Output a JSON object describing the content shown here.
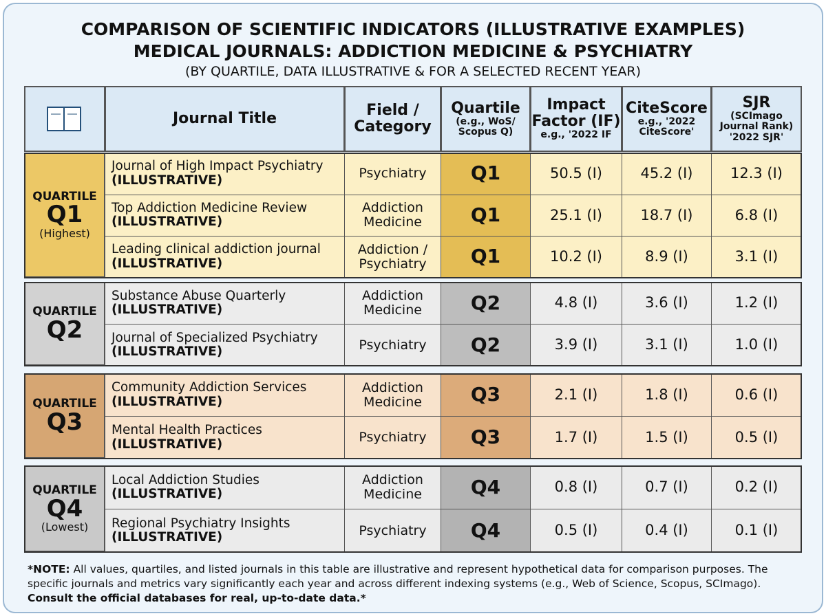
{
  "header": {
    "title_lines": [
      "COMPARISON OF SCIENTIFIC INDICATORS (ILLUSTRATIVE EXAMPLES)",
      "MEDICAL JOURNALS: ADDICTION MEDICINE & PSYCHIATRY",
      "(BY QUARTILE, DATA ILLUSTRATIVE & FOR A SELECTED RECENT YEAR)"
    ]
  },
  "table": {
    "columns": {
      "title": "Journal Title",
      "field": "Field / Category",
      "quartile": {
        "main": "Quartile",
        "sub": "(e.g., WoS/ Scopus Q)"
      },
      "impact_factor": {
        "main": "Impact Factor (IF)",
        "sub": "e.g., '2022 IF"
      },
      "citescore": {
        "main": "CiteScore",
        "sub": "e.g., '2022 CiteScore'"
      },
      "sjr": {
        "main": "SJR",
        "sub": "(SCImago Journal Rank) '2022 SJR'"
      }
    },
    "groups": [
      {
        "label": "QUARTILE",
        "quartile": "Q1",
        "note": "(Highest)",
        "rows": [
          {
            "title": "Journal of High Impact Psychiatry",
            "tag": "(ILLUSTRATIVE)",
            "field": "Psychiatry",
            "quartile": "Q1",
            "impact_factor": "50.5 (I)",
            "citescore": "45.2 (I)",
            "sjr": "12.3 (I)"
          },
          {
            "title": "Top Addiction Medicine Review",
            "tag": "(ILLUSTRATIVE)",
            "field": "Addiction Medicine",
            "quartile": "Q1",
            "impact_factor": "25.1 (I)",
            "citescore": "18.7 (I)",
            "sjr": "6.8 (I)"
          },
          {
            "title": "Leading clinical addiction journal",
            "tag": "(ILLUSTRATIVE)",
            "field": "Addiction / Psychiatry",
            "quartile": "Q1",
            "impact_factor": "10.2 (I)",
            "citescore": "8.9 (I)",
            "sjr": "3.1 (I)"
          }
        ]
      },
      {
        "label": "QUARTILE",
        "quartile": "Q2",
        "rows": [
          {
            "title": "Substance Abuse Quarterly",
            "tag": "(ILLUSTRATIVE)",
            "field": "Addiction Medicine",
            "quartile": "Q2",
            "impact_factor": "4.8 (I)",
            "citescore": "3.6 (I)",
            "sjr": "1.2 (I)"
          },
          {
            "title": "Journal of Specialized Psychiatry",
            "tag": "(ILLUSTRATIVE)",
            "field": "Psychiatry",
            "quartile": "Q2",
            "impact_factor": "3.9 (I)",
            "citescore": "3.1 (I)",
            "sjr": "1.0 (I)"
          }
        ]
      },
      {
        "label": "QUARTILE",
        "quartile": "Q3",
        "rows": [
          {
            "title": "Community Addiction Services",
            "tag": "(ILLUSTRATIVE)",
            "field": "Addiction Medicine",
            "quartile": "Q3",
            "impact_factor": "2.1 (I)",
            "citescore": "1.8 (I)",
            "sjr": "0.6 (I)"
          },
          {
            "title": "Mental Health Practices",
            "tag": "(ILLUSTRATIVE)",
            "field": "Psychiatry",
            "quartile": "Q3",
            "impact_factor": "1.7 (I)",
            "citescore": "1.5 (I)",
            "sjr": "0.5 (I)"
          }
        ]
      },
      {
        "label": "QUARTILE",
        "quartile": "Q4",
        "note": "(Lowest)",
        "rows": [
          {
            "title": "Local Addiction Studies",
            "tag": "(ILLUSTRATIVE)",
            "field": "Addiction Medicine",
            "quartile": "Q4",
            "impact_factor": "0.8 (I)",
            "citescore": "0.7 (I)",
            "sjr": "0.2 (I)"
          },
          {
            "title": "Regional Psychiatry Insights",
            "tag": "(ILLUSTRATIVE)",
            "field": "Psychiatry",
            "quartile": "Q4",
            "impact_factor": "0.5 (I)",
            "citescore": "0.4 (I)",
            "sjr": "0.1 (I)"
          }
        ]
      }
    ]
  },
  "note": {
    "lead": "*NOTE:",
    "text": "All values, quartiles, and listed journals in this table are illustrative and represent hypothetical data for comparison purposes. The specific journals and metrics vary significantly each year and across different indexing systems (e.g., Web of Science, Scopus, SCImago).",
    "closing": "Consult the official databases for real, up-to-date data.*"
  }
}
